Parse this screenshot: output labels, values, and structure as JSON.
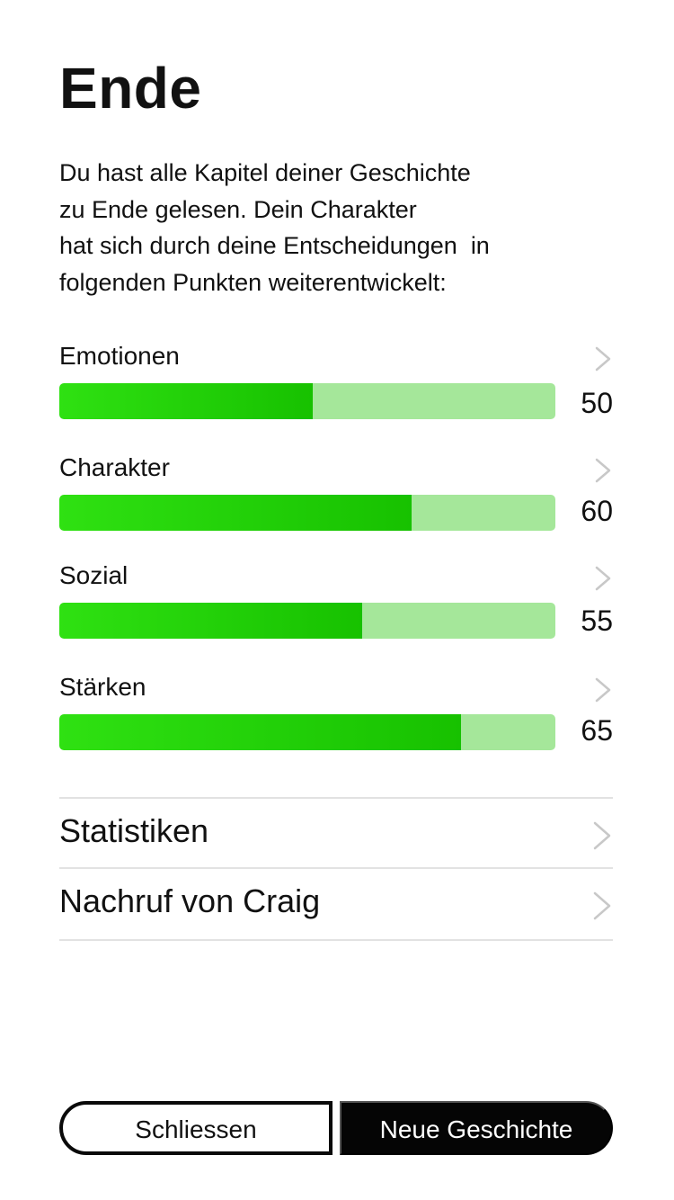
{
  "header": {
    "title": "Ende"
  },
  "intro": {
    "lines": [
      "Du hast alle Kapitel deiner Geschichte",
      "zu Ende gelesen. Dein Charakter",
      "hat sich durch deine Entscheidungen  in",
      "folgenden Punkten weiterentwickelt:"
    ]
  },
  "stats": [
    {
      "label": "Emotionen",
      "value": "50",
      "fill_fraction": 0.51
    },
    {
      "label": "Charakter",
      "value": "60",
      "fill_fraction": 0.71
    },
    {
      "label": "Sozial",
      "value": "55",
      "fill_fraction": 0.61
    },
    {
      "label": "Stärken",
      "value": "65",
      "fill_fraction": 0.81
    }
  ],
  "nav": {
    "statistics_label": "Statistiken",
    "obituary_label": "Nachruf von Craig"
  },
  "buttons": {
    "close_label": "Schliessen",
    "new_story_label": "Neue Geschichte"
  },
  "colors": {
    "bar_fill": "#22d40a",
    "bar_track": "#a5e79a",
    "primary_button": "#050505"
  },
  "icons": {
    "chevron": "chevron-right-icon"
  }
}
